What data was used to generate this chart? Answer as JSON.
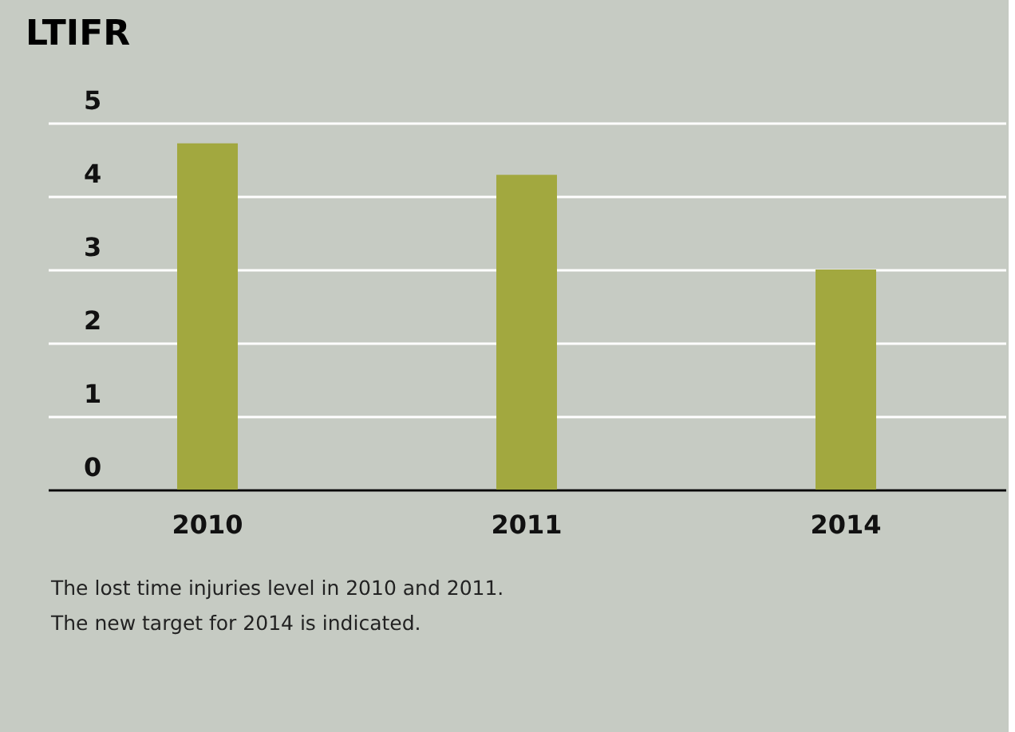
{
  "chart_data": {
    "type": "bar",
    "title": "LTIFR",
    "categories": [
      "2010",
      "2011",
      "2014"
    ],
    "values": [
      4.72,
      4.29,
      3.0
    ],
    "color": "#a2a83f",
    "ylim": [
      0,
      5
    ],
    "yticks": [
      0,
      1,
      2,
      3,
      4,
      5
    ],
    "grid": "y",
    "annotations": [
      "The lost time injuries level in 2010 and 2011.",
      "The new target for 2014 is indicated."
    ]
  }
}
